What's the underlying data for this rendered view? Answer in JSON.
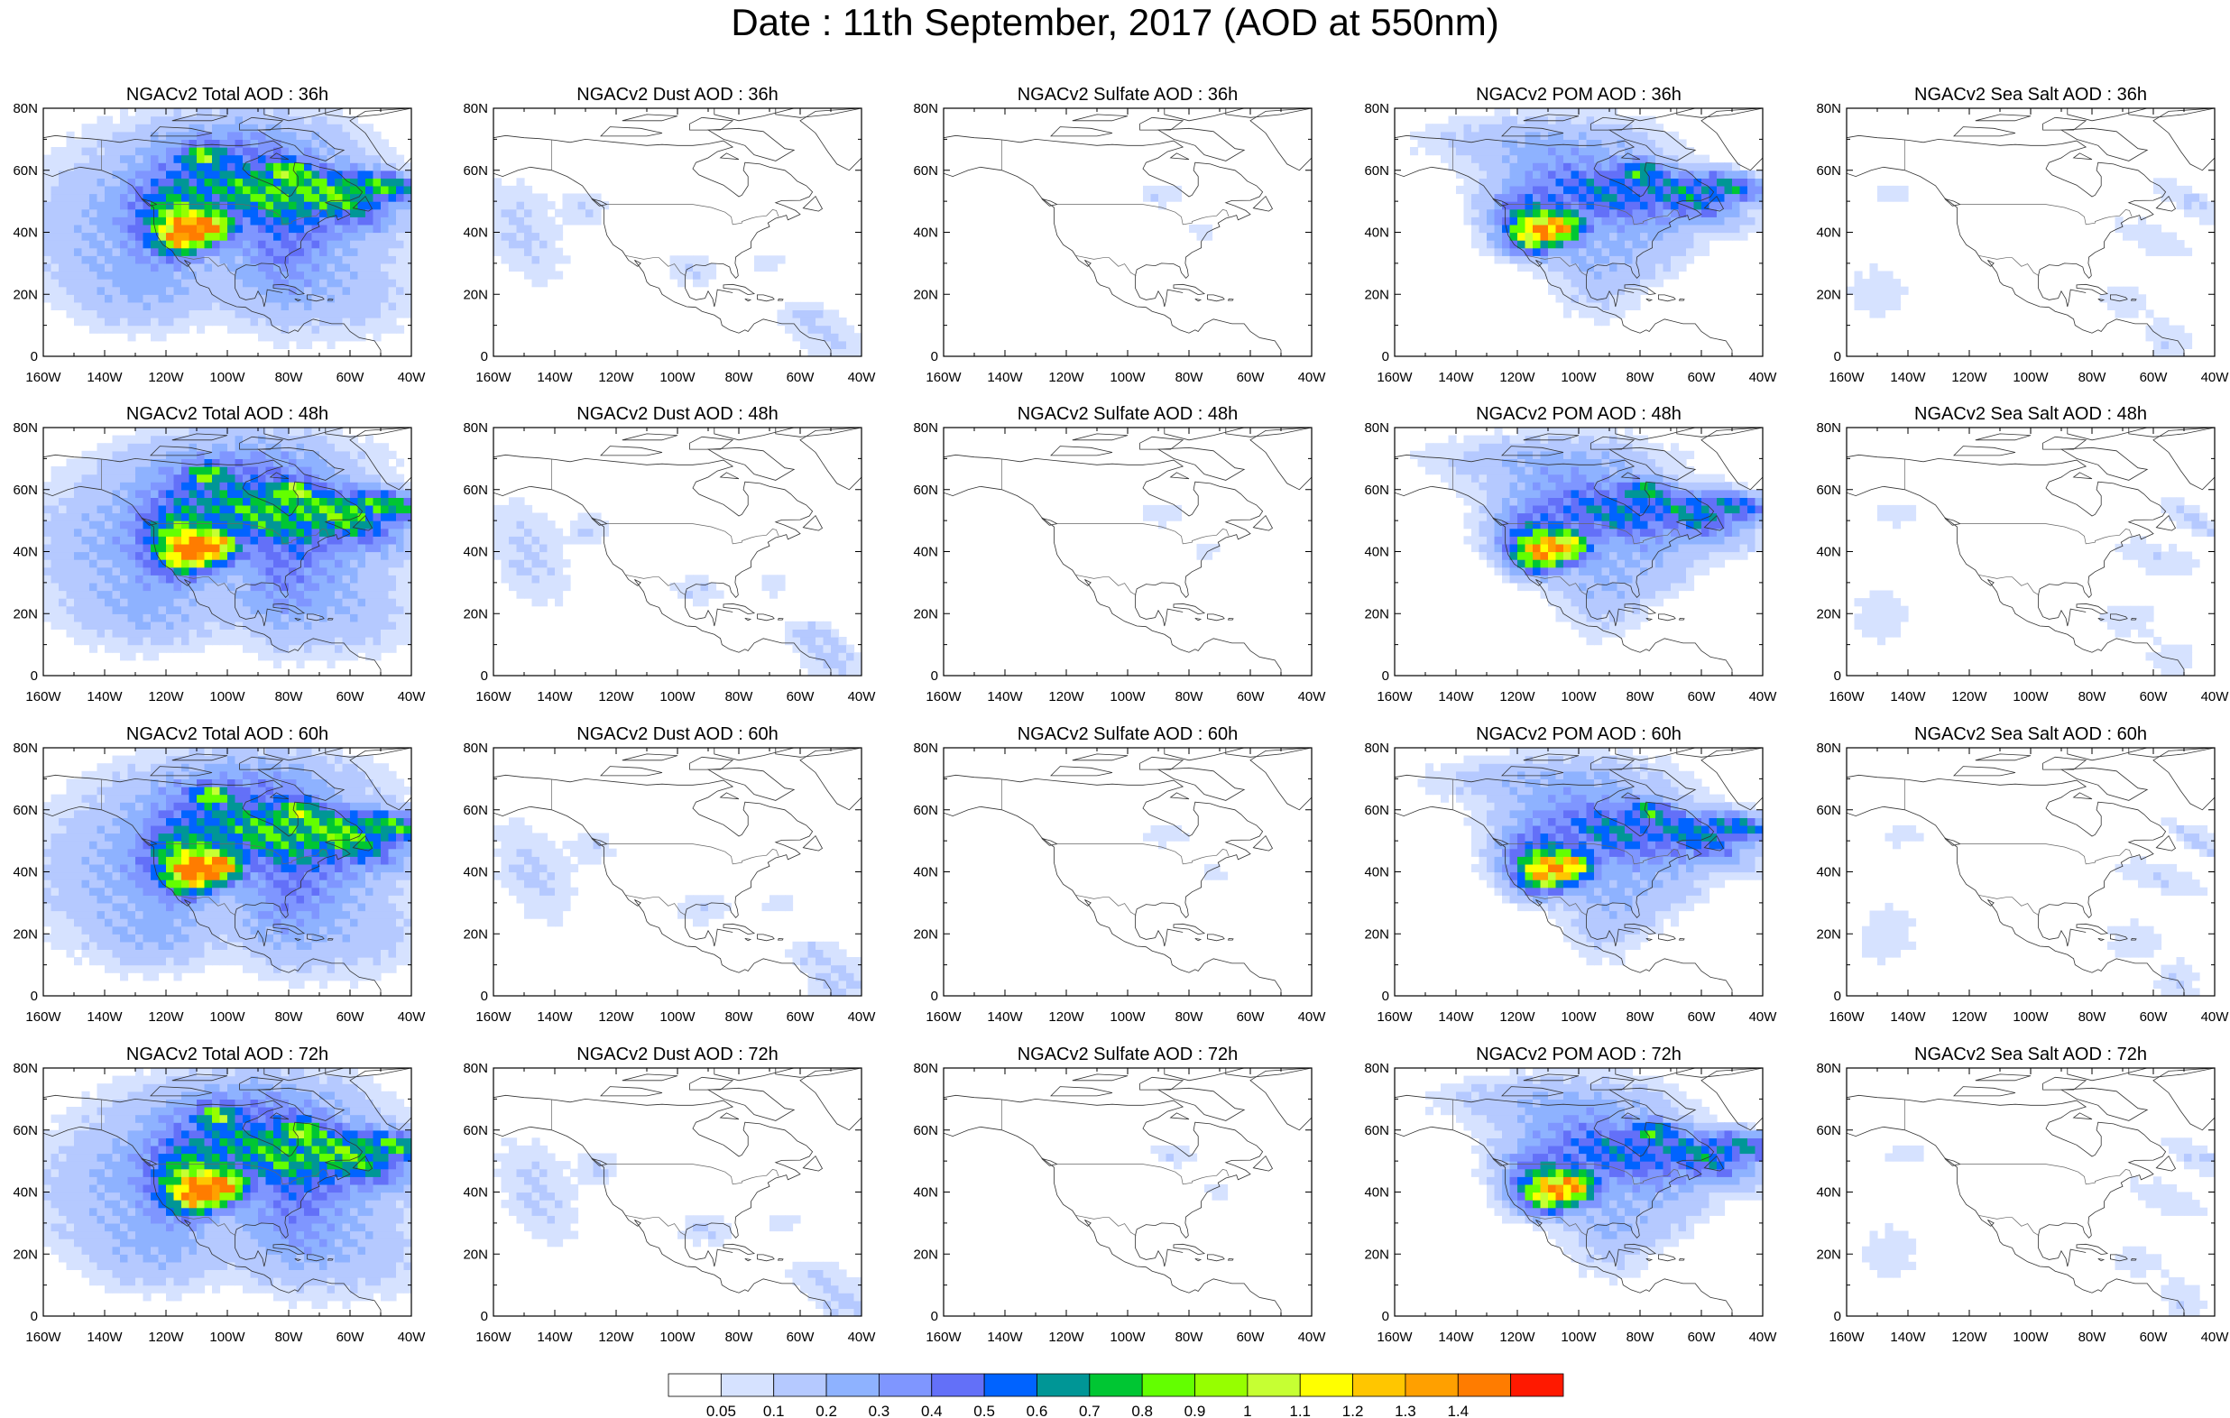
{
  "title": "Date : 11th September, 2017 (AOD at 550nm)",
  "rows": [
    [
      "NGACv2 Total AOD : 36h",
      "NGACv2 Dust AOD : 36h",
      "NGACv2 Sulfate AOD : 36h",
      "NGACv2 POM AOD : 36h",
      "NGACv2 Sea Salt AOD : 36h"
    ],
    [
      "NGACv2 Total AOD : 48h",
      "NGACv2 Dust AOD : 48h",
      "NGACv2 Sulfate AOD : 48h",
      "NGACv2 POM AOD : 48h",
      "NGACv2 Sea Salt AOD : 48h"
    ],
    [
      "NGACv2 Total AOD : 60h",
      "NGACv2 Dust AOD : 60h",
      "NGACv2 Sulfate AOD : 60h",
      "NGACv2 POM AOD : 60h",
      "NGACv2 Sea Salt AOD : 60h"
    ],
    [
      "NGACv2 Total AOD : 72h",
      "NGACv2 Dust AOD : 72h",
      "NGACv2 Sulfate AOD : 72h",
      "NGACv2 POM AOD : 72h",
      "NGACv2 Sea Salt  AOD : 72h"
    ]
  ],
  "axes": {
    "lon_ticks": [
      "160W",
      "140W",
      "120W",
      "100W",
      "80W",
      "60W",
      "40W"
    ],
    "lat_ticks": [
      "0",
      "20N",
      "40N",
      "60N",
      "80N"
    ],
    "lon_range": [
      -160,
      -40
    ],
    "lat_range": [
      0,
      80
    ]
  },
  "colorbar": {
    "labels": [
      "0.05",
      "0.1",
      "0.2",
      "0.3",
      "0.4",
      "0.5",
      "0.6",
      "0.7",
      "0.8",
      "0.9",
      "1",
      "1.1",
      "1.2",
      "1.3",
      "1.4"
    ],
    "colors": [
      "#ffffff",
      "#d6e2ff",
      "#b5c9ff",
      "#8eb2ff",
      "#7f96ff",
      "#6370f8",
      "#0063ff",
      "#009696",
      "#00c633",
      "#63ff00",
      "#96ff00",
      "#c6ff33",
      "#ffff00",
      "#ffc600",
      "#ffa000",
      "#ff7c00",
      "#ff1900"
    ]
  }
}
